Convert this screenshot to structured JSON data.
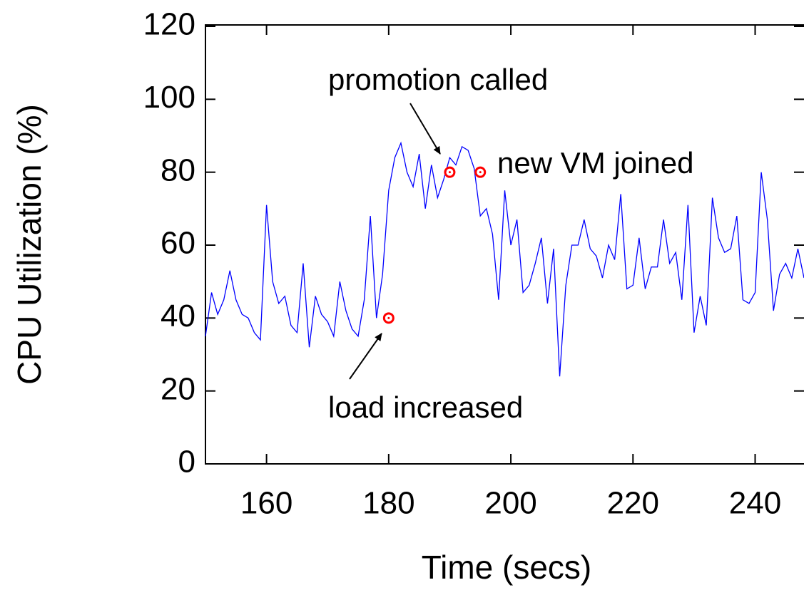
{
  "chart_data": {
    "type": "line",
    "xlabel": "Time (secs)",
    "ylabel": "CPU Utilization (%)",
    "x": [
      150,
      151,
      152,
      153,
      154,
      155,
      156,
      157,
      158,
      159,
      160,
      161,
      162,
      163,
      164,
      165,
      166,
      167,
      168,
      169,
      170,
      171,
      172,
      173,
      174,
      175,
      176,
      177,
      178,
      179,
      180,
      181,
      182,
      183,
      184,
      185,
      186,
      187,
      188,
      189,
      190,
      191,
      192,
      193,
      194,
      195,
      196,
      197,
      198,
      199,
      200,
      201,
      202,
      203,
      204,
      205,
      206,
      207,
      208,
      209,
      210,
      211,
      212,
      213,
      214,
      215,
      216,
      217,
      218,
      219,
      220,
      221,
      222,
      223,
      224,
      225,
      226,
      227,
      228,
      229,
      230,
      231,
      232,
      233,
      234,
      235,
      236,
      237,
      238,
      239,
      240,
      241,
      242,
      243,
      244,
      245,
      246,
      247,
      248
    ],
    "series": [
      {
        "name": "CPU",
        "color": "#0000ff",
        "values": [
          35,
          47,
          41,
          45,
          53,
          45,
          41,
          40,
          36,
          34,
          71,
          50,
          44,
          46,
          38,
          36,
          55,
          32,
          46,
          41,
          39,
          35,
          50,
          42,
          37,
          35,
          45,
          68,
          40,
          52,
          75,
          84,
          88,
          80,
          76,
          85,
          70,
          82,
          73,
          78,
          84,
          82,
          87,
          86,
          81,
          68,
          70,
          63,
          45,
          75,
          60,
          67,
          47,
          49,
          55,
          62,
          44,
          59,
          24,
          49,
          60,
          60,
          67,
          59,
          57,
          51,
          60,
          56,
          74,
          48,
          49,
          62,
          48,
          54,
          54,
          67,
          55,
          58,
          45,
          71,
          36,
          46,
          38,
          73,
          62,
          58,
          59,
          68,
          45,
          44,
          47,
          80,
          67,
          42,
          52,
          55,
          51,
          59,
          51
        ]
      }
    ],
    "markers": {
      "color": "#ff0000",
      "x": [
        180,
        190,
        195
      ],
      "values": [
        40,
        80,
        80
      ]
    },
    "annotations": [
      {
        "text": "promotion called"
      },
      {
        "text": "new VM joined"
      },
      {
        "text": "load increased"
      }
    ],
    "xlim": [
      150,
      248
    ],
    "ylim": [
      0,
      120
    ],
    "xticks": [
      160,
      180,
      200,
      220,
      240
    ],
    "yticks": [
      0,
      20,
      40,
      60,
      80,
      100,
      120
    ]
  }
}
